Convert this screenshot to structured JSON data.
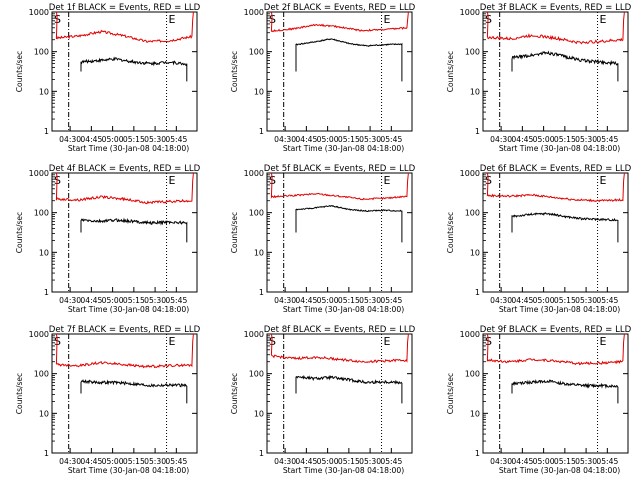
{
  "colors": {
    "events": "#000000",
    "lld": "#e00000",
    "axes": "#000000",
    "background": "#ffffff"
  },
  "chart_data": [
    {
      "type": "line",
      "title": "Det 1f BLACK = Events, RED = LLD",
      "xlabel": "Start Time (30-Jan-08 04:18:00)",
      "ylabel": "Counts/sec",
      "x_ticks": [
        "04:30",
        "04:45",
        "05:00",
        "05:15",
        "05:30",
        "05:45"
      ],
      "y_ticks": [
        "1",
        "10",
        "100",
        "1000"
      ],
      "yscale": "log",
      "ylim": [
        1,
        1000
      ],
      "markers": {
        "start": "S",
        "end": "E"
      },
      "series": [
        {
          "level": [
            220,
            250,
            320,
            250,
            180,
            190,
            240
          ],
          "wave": 0.06
        },
        {
          "level": [
            55,
            60,
            65,
            55,
            50,
            55,
            48
          ],
          "wave": 0.07
        }
      ]
    },
    {
      "type": "line",
      "title": "Det 2f BLACK = Events, RED = LLD",
      "xlabel": "Start Time (30-Jan-08 04:18:00)",
      "ylabel": "Counts/sec",
      "x_ticks": [
        "04:30",
        "04:45",
        "05:00",
        "05:15",
        "05:30",
        "05:45"
      ],
      "y_ticks": [
        "1",
        "10",
        "100",
        "1000"
      ],
      "yscale": "log",
      "ylim": [
        1,
        1000
      ],
      "markers": {
        "start": "S",
        "end": "E"
      },
      "series": [
        {
          "level": [
            330,
            380,
            480,
            420,
            340,
            360,
            400
          ],
          "wave": 0.04
        },
        {
          "level": [
            150,
            175,
            210,
            160,
            140,
            150,
            155
          ],
          "wave": 0.03
        }
      ]
    },
    {
      "type": "line",
      "title": "Det 3f BLACK = Events, RED = LLD",
      "xlabel": "Start Time (30-Jan-08 04:18:00)",
      "ylabel": "Counts/sec",
      "x_ticks": [
        "04:30",
        "04:45",
        "05:00",
        "05:15",
        "05:30",
        "05:45"
      ],
      "y_ticks": [
        "1",
        "10",
        "100",
        "1000"
      ],
      "yscale": "log",
      "ylim": [
        1,
        1000
      ],
      "markers": {
        "start": "S",
        "end": "E"
      },
      "series": [
        {
          "level": [
            230,
            210,
            260,
            220,
            170,
            180,
            200
          ],
          "wave": 0.07
        },
        {
          "level": [
            70,
            80,
            95,
            75,
            60,
            55,
            50
          ],
          "wave": 0.08
        }
      ]
    },
    {
      "type": "line",
      "title": "Det 4f BLACK = Events, RED = LLD",
      "xlabel": "Start Time (30-Jan-08 04:18:00)",
      "ylabel": "Counts/sec",
      "x_ticks": [
        "04:30",
        "04:45",
        "05:00",
        "05:15",
        "05:30",
        "05:45"
      ],
      "y_ticks": [
        "1",
        "10",
        "100",
        "1000"
      ],
      "yscale": "log",
      "ylim": [
        1,
        1000
      ],
      "markers": {
        "start": "S",
        "end": "E"
      },
      "series": [
        {
          "level": [
            220,
            210,
            250,
            220,
            180,
            190,
            200
          ],
          "wave": 0.06
        },
        {
          "level": [
            65,
            60,
            65,
            60,
            55,
            58,
            55
          ],
          "wave": 0.07
        }
      ]
    },
    {
      "type": "line",
      "title": "Det 5f BLACK = Events, RED = LLD",
      "xlabel": "Start Time (30-Jan-08 04:18:00)",
      "ylabel": "Counts/sec",
      "x_ticks": [
        "04:30",
        "04:45",
        "05:00",
        "05:15",
        "05:30",
        "05:45"
      ],
      "y_ticks": [
        "1",
        "10",
        "100",
        "1000"
      ],
      "yscale": "log",
      "ylim": [
        1,
        1000
      ],
      "markers": {
        "start": "S",
        "end": "E"
      },
      "series": [
        {
          "level": [
            250,
            270,
            300,
            260,
            220,
            230,
            260
          ],
          "wave": 0.04
        },
        {
          "level": [
            120,
            130,
            150,
            120,
            110,
            115,
            110
          ],
          "wave": 0.03
        }
      ]
    },
    {
      "type": "line",
      "title": "Det 6f BLACK = Events, RED = LLD",
      "xlabel": "Start Time (30-Jan-08 04:18:00)",
      "ylabel": "Counts/sec",
      "x_ticks": [
        "04:30",
        "04:45",
        "05:00",
        "05:15",
        "05:30",
        "05:45"
      ],
      "y_ticks": [
        "1",
        "10",
        "100",
        "1000"
      ],
      "yscale": "log",
      "ylim": [
        1,
        1000
      ],
      "markers": {
        "start": "S",
        "end": "E"
      },
      "series": [
        {
          "level": [
            270,
            260,
            280,
            240,
            210,
            200,
            210
          ],
          "wave": 0.05
        },
        {
          "level": [
            80,
            90,
            95,
            80,
            70,
            68,
            65
          ],
          "wave": 0.05
        }
      ]
    },
    {
      "type": "line",
      "title": "Det 7f BLACK = Events, RED = LLD",
      "xlabel": "Start Time (30-Jan-08 04:18:00)",
      "ylabel": "Counts/sec",
      "x_ticks": [
        "04:30",
        "04:45",
        "05:00",
        "05:15",
        "05:30",
        "05:45"
      ],
      "y_ticks": [
        "1",
        "10",
        "100",
        "1000"
      ],
      "yscale": "log",
      "ylim": [
        1,
        1000
      ],
      "markers": {
        "start": "S",
        "end": "E"
      },
      "series": [
        {
          "level": [
            170,
            160,
            190,
            170,
            150,
            160,
            165
          ],
          "wave": 0.06
        },
        {
          "level": [
            65,
            60,
            60,
            55,
            50,
            52,
            50
          ],
          "wave": 0.07
        }
      ]
    },
    {
      "type": "line",
      "title": "Det 8f BLACK = Events, RED = LLD",
      "xlabel": "Start Time (30-Jan-08 04:18:00)",
      "ylabel": "Counts/sec",
      "x_ticks": [
        "04:30",
        "04:45",
        "05:00",
        "05:15",
        "05:30",
        "05:45"
      ],
      "y_ticks": [
        "1",
        "10",
        "100",
        "1000"
      ],
      "yscale": "log",
      "ylim": [
        1,
        1000
      ],
      "markers": {
        "start": "S",
        "end": "E"
      },
      "series": [
        {
          "level": [
            280,
            240,
            260,
            230,
            200,
            210,
            220
          ],
          "wave": 0.06
        },
        {
          "level": [
            85,
            75,
            80,
            70,
            60,
            62,
            60
          ],
          "wave": 0.07
        }
      ]
    },
    {
      "type": "line",
      "title": "Det 9f BLACK = Events, RED = LLD",
      "xlabel": "Start Time (30-Jan-08 04:18:00)",
      "ylabel": "Counts/sec",
      "x_ticks": [
        "04:30",
        "04:45",
        "05:00",
        "05:15",
        "05:30",
        "05:45"
      ],
      "y_ticks": [
        "1",
        "10",
        "100",
        "1000"
      ],
      "yscale": "log",
      "ylim": [
        1,
        1000
      ],
      "markers": {
        "start": "S",
        "end": "E"
      },
      "series": [
        {
          "level": [
            220,
            200,
            230,
            210,
            180,
            185,
            200
          ],
          "wave": 0.06
        },
        {
          "level": [
            55,
            60,
            65,
            55,
            50,
            50,
            48
          ],
          "wave": 0.07
        }
      ]
    }
  ]
}
